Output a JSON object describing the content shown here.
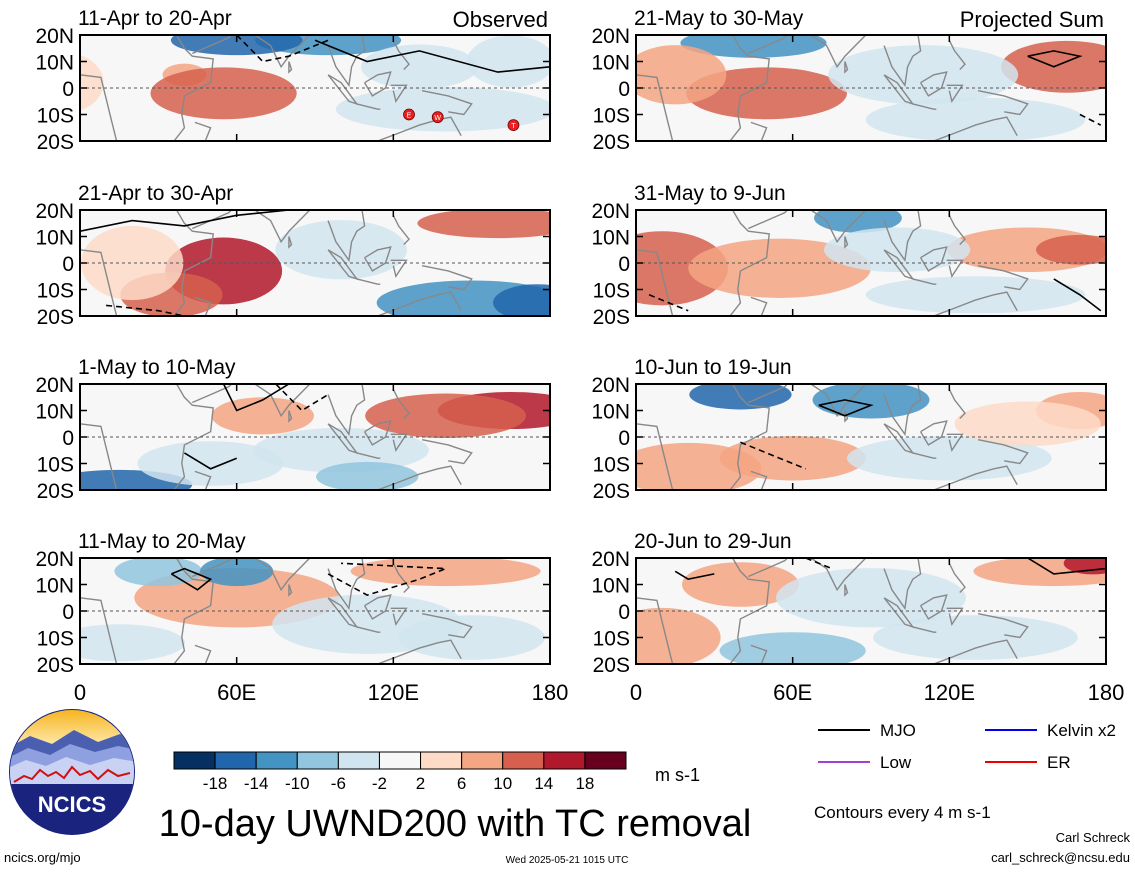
{
  "colors": {
    "levels": [
      "#053061",
      "#2166ac",
      "#4393c3",
      "#92c5de",
      "#d1e5f0",
      "#f7f7f7",
      "#fddbc7",
      "#f4a582",
      "#d6604d",
      "#b2182b",
      "#67001f"
    ],
    "mjo": "#000000",
    "kelvin": "#0000ee",
    "low": "#a040d0",
    "er": "#ee0000",
    "land": "#888888",
    "tc": "#e82020"
  },
  "chart_data": {
    "type": "heatmap",
    "title": "10-day UWND200 with TC removal",
    "variable": "UWND200",
    "units": "m s-1",
    "lon_range": [
      0,
      180
    ],
    "lat_range": [
      -20,
      20
    ],
    "lon_ticks": [
      "0",
      "60E",
      "120E",
      "180"
    ],
    "lat_ticks": [
      "20N",
      "10N",
      "0",
      "10S",
      "20S"
    ],
    "colorbar_ticks": [
      "-18",
      "-14",
      "-10",
      "-6",
      "-2",
      "2",
      "6",
      "10",
      "14",
      "18"
    ],
    "contour_note": "Contours every 4 m s-1",
    "columns": [
      {
        "header": "Observed",
        "panels": [
          "11-Apr to 20-Apr",
          "21-Apr to 30-Apr",
          "1-May to 10-May",
          "11-May to 20-May"
        ]
      },
      {
        "header": "Projected Sum",
        "panels": [
          "21-May to 30-May",
          "31-May to 9-Jun",
          "10-Jun to 19-Jun",
          "20-Jun to 29-Jun"
        ]
      }
    ],
    "tc_markers": [
      {
        "panel": "11-Apr to 20-Apr",
        "label": "E",
        "lon": 126,
        "lat": -10
      },
      {
        "panel": "11-Apr to 20-Apr",
        "label": "W",
        "lon": 137,
        "lat": -11
      },
      {
        "panel": "11-Apr to 20-Apr",
        "label": "T",
        "lon": 166,
        "lat": -14
      }
    ],
    "legend": [
      {
        "label": "MJO",
        "color": "#000000"
      },
      {
        "label": "Kelvin x2",
        "color": "#0000ee"
      },
      {
        "label": "Low",
        "color": "#a040d0"
      },
      {
        "label": "ER",
        "color": "#ee0000"
      }
    ]
  },
  "logo": {
    "text": "NCICS"
  },
  "footer": {
    "website": "ncics.org/mjo",
    "timestamp": "Wed 2025-05-21 1015 UTC",
    "author": "Carl Schreck",
    "email": "carl_schreck@ncsu.edu"
  }
}
